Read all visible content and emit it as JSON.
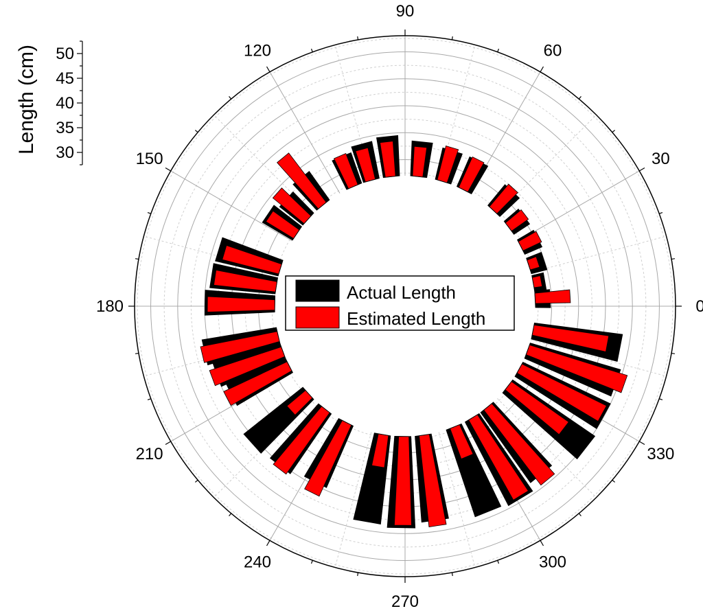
{
  "chart_data": {
    "type": "polar-bar",
    "angle_ticks": [
      "0",
      "30",
      "60",
      "90",
      "120",
      "150",
      "180",
      "210",
      "240",
      "270",
      "300",
      "330"
    ],
    "radial_axis": {
      "title": "Length (cm)",
      "ticks": [
        "30",
        "35",
        "40",
        "45",
        "50"
      ],
      "range": [
        27,
        53
      ]
    },
    "grid": true,
    "legend": {
      "placement": "center"
    },
    "series": [
      {
        "name": "Actual Length",
        "color": "#000000"
      },
      {
        "name": "Estimated Length",
        "color": "#ff0000"
      }
    ],
    "bars": [
      {
        "angle": 3,
        "actual": 29.8,
        "estimated": 33.5
      },
      {
        "angle": 10,
        "actual": 29.2,
        "estimated": 28.5
      },
      {
        "angle": 18,
        "actual": 30.0,
        "estimated": 28.8
      },
      {
        "angle": 27,
        "actual": 30.5,
        "estimated": 30.8
      },
      {
        "angle": 37,
        "actual": 30.5,
        "estimated": 30.8
      },
      {
        "angle": 47,
        "actual": 32.0,
        "estimated": 32.5
      },
      {
        "angle": 63,
        "actual": 33.0,
        "estimated": 33.2
      },
      {
        "angle": 73,
        "actual": 33.0,
        "estimated": 33.5
      },
      {
        "angle": 84,
        "actual": 33.5,
        "estimated": 32.5
      },
      {
        "angle": 96,
        "actual": 34.5,
        "estimated": 33.5
      },
      {
        "angle": 105,
        "actual": 34.0,
        "estimated": 33.0
      },
      {
        "angle": 113,
        "actual": 33.0,
        "estimated": 33.2
      },
      {
        "angle": 129,
        "actual": 33.5,
        "estimated": 38.5
      },
      {
        "angle": 138,
        "actual": 32.5,
        "estimated": 34.5
      },
      {
        "angle": 146,
        "actual": 33.5,
        "estimated": 33.0
      },
      {
        "angle": 163,
        "actual": 39.0,
        "estimated": 37.8
      },
      {
        "angle": 171,
        "actual": 39.2,
        "estimated": 38.5
      },
      {
        "angle": 179,
        "actual": 40.0,
        "estimated": 39.5
      },
      {
        "angle": 193,
        "actual": 41.0,
        "estimated": 41.5
      },
      {
        "angle": 200,
        "actual": 40.0,
        "estimated": 41.0
      },
      {
        "angle": 207,
        "actual": 39.0,
        "estimated": 40.0
      },
      {
        "angle": 222,
        "actual": 41.0,
        "estimated": 31.5
      },
      {
        "angle": 232,
        "actual": 40.5,
        "estimated": 41.0
      },
      {
        "angle": 243,
        "actual": 39.5,
        "estimated": 41.5
      },
      {
        "angle": 260,
        "actual": 43.5,
        "estimated": 33.0
      },
      {
        "angle": 269,
        "actual": 44.0,
        "estimated": 43.5
      },
      {
        "angle": 278,
        "actual": 43.0,
        "estimated": 44.0
      },
      {
        "angle": 292,
        "actual": 44.0,
        "estimated": 33.0
      },
      {
        "angle": 301,
        "actual": 44.5,
        "estimated": 44.0
      },
      {
        "angle": 309,
        "actual": 43.0,
        "estimated": 44.5
      },
      {
        "angle": 322,
        "actual": 45.5,
        "estimated": 40.0
      },
      {
        "angle": 331,
        "actual": 45.0,
        "estimated": 44.5
      },
      {
        "angle": 340,
        "actual": 44.5,
        "estimated": 46.0
      },
      {
        "angle": 349,
        "actual": 43.5,
        "estimated": 41.0
      }
    ]
  }
}
